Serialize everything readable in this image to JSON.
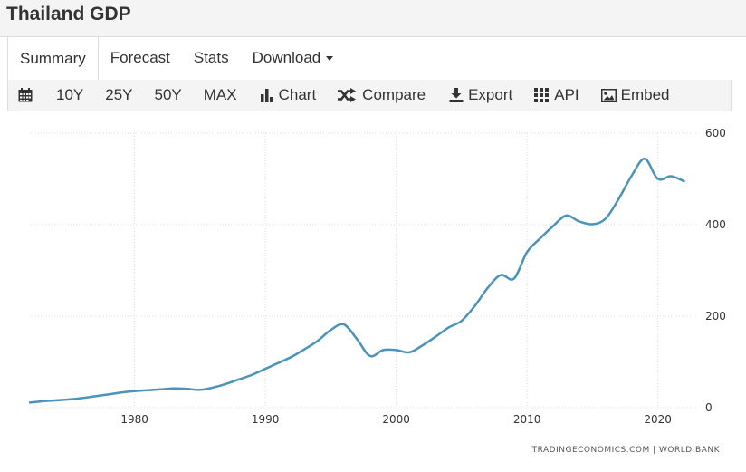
{
  "page": {
    "title": "Thailand GDP"
  },
  "tabs": [
    {
      "label": "Summary",
      "active": true
    },
    {
      "label": "Forecast",
      "active": false
    },
    {
      "label": "Stats",
      "active": false
    },
    {
      "label": "Download",
      "active": false,
      "dropdown": true
    }
  ],
  "toolbar": {
    "calendar_icon": "calendar-icon",
    "ranges": [
      "10Y",
      "25Y",
      "50Y",
      "MAX"
    ],
    "chart_label": "Chart",
    "compare_label": "Compare",
    "export_label": "Export",
    "api_label": "API",
    "embed_label": "Embed"
  },
  "credits": "TRADINGECONOMICS.COM  |  WORLD BANK",
  "colors": {
    "line": "#4a93bc",
    "grid": "#dddddd",
    "axis_text": "#333333"
  },
  "chart_data": {
    "type": "line",
    "title": "",
    "xlabel": "",
    "ylabel": "",
    "xlim": [
      1972,
      2023
    ],
    "ylim": [
      0,
      600
    ],
    "x_ticks": [
      1980,
      1990,
      2000,
      2010,
      2020
    ],
    "y_ticks": [
      0,
      200,
      400,
      600
    ],
    "grid": true,
    "y_axis_position": "right",
    "series": [
      {
        "x": [
          1972,
          1973,
          1974,
          1975,
          1976,
          1977,
          1978,
          1979,
          1980,
          1981,
          1982,
          1983,
          1984,
          1985,
          1986,
          1987,
          1988,
          1989,
          1990,
          1991,
          1992,
          1993,
          1994,
          1995,
          1996,
          1997,
          1998,
          1999,
          2000,
          2001,
          2002,
          2003,
          2004,
          2005,
          2006,
          2007,
          2008,
          2009,
          2010,
          2011,
          2012,
          2013,
          2014,
          2015,
          2016,
          2017,
          2018,
          2019,
          2020,
          2021,
          2022
        ],
        "values": [
          11,
          14,
          16,
          18,
          21,
          25,
          29,
          33,
          36,
          38,
          40,
          42,
          41,
          39,
          44,
          52,
          62,
          72,
          85,
          98,
          111,
          128,
          146,
          170,
          182,
          150,
          113,
          126,
          126,
          121,
          136,
          155,
          175,
          190,
          222,
          262,
          290,
          282,
          340,
          370,
          397,
          420,
          407,
          401,
          413,
          456,
          507,
          544,
          500,
          506,
          495
        ]
      }
    ]
  }
}
